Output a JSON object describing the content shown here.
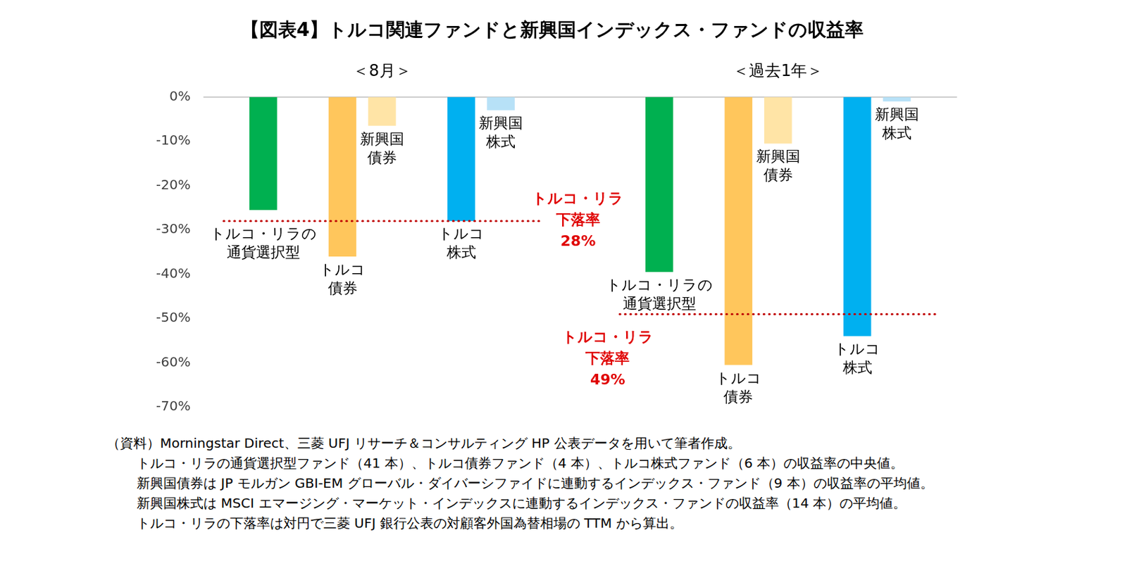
{
  "chart_data": {
    "type": "bar",
    "title": "【図表4】トルコ関連ファンドと新興国インデックス・ファンドの収益率",
    "categories": [
      [
        "トルコ・リラの",
        "通貨選択型"
      ],
      [
        "トルコ",
        "債券"
      ],
      [
        "新興国",
        "債券"
      ],
      [
        "トルコ",
        "株式"
      ],
      [
        "新興国",
        "株式"
      ]
    ],
    "series": [
      {
        "name": "＜8月＞",
        "values": [
          -25.5,
          -36,
          -6.5,
          -28,
          -3
        ],
        "colors": [
          "#00b050",
          "#ffc65c",
          "#ffe4a6",
          "#00b0f0",
          "#b7e1f7"
        ],
        "reference_line": {
          "value": -28,
          "label": [
            "トルコ・リラ",
            "下落率",
            "28%"
          ]
        }
      },
      {
        "name": "＜過去1年＞",
        "values": [
          -39.5,
          -60.5,
          -10.5,
          -54,
          -1
        ],
        "colors": [
          "#00b050",
          "#ffc65c",
          "#ffe4a6",
          "#00b0f0",
          "#b7e1f7"
        ],
        "reference_line": {
          "value": -49,
          "label": [
            "トルコ・リラ",
            "下落率",
            "49%"
          ]
        }
      }
    ],
    "ylim": [
      -70,
      0
    ],
    "yticks": [
      {
        "value": 0,
        "label": "0%"
      },
      {
        "value": -10,
        "label": "-10%"
      },
      {
        "value": -20,
        "label": "-20%"
      },
      {
        "value": -30,
        "label": "-30%"
      },
      {
        "value": -40,
        "label": "-40%"
      },
      {
        "value": -50,
        "label": "-50%"
      },
      {
        "value": -60,
        "label": "-60%"
      },
      {
        "value": -70,
        "label": "-70%"
      }
    ],
    "grid": false,
    "tick_labels": "y",
    "source": "（資料）Morningstar Direct、三菱 UFJ リサーチ＆コンサルティング HP 公表データを用いて筆者作成。",
    "notes": [
      "トルコ・リラの通貨選択型ファンド（41 本）、トルコ債券ファンド（4 本）、トルコ株式ファンド（6 本）の収益率の中央値。",
      "新興国債券は JP モルガン GBI-EM グローバル・ダイバーシファイドに連動するインデックス・ファンド（9 本）の収益率の平均値。",
      "新興国株式は MSCI エマージング・マーケット・インデックスに連動するインデックス・ファンドの収益率（14 本）の平均値。",
      "トルコ・リラの下落率は対円で三菱 UFJ 銀行公表の対顧客外国為替相場の TTM から算出。"
    ]
  }
}
